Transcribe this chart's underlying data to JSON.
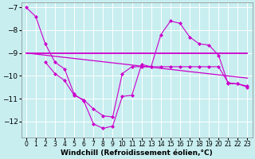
{
  "background_color": "#c8eef0",
  "grid_color": "#ffffff",
  "line_color": "#cc00cc",
  "xlabel": "Windchill (Refroidissement éolien,°C)",
  "xlabel_fontsize": 6.5,
  "ytick_fontsize": 6.5,
  "xtick_fontsize": 5.5,
  "ylim": [
    -12.7,
    -6.8
  ],
  "xlim": [
    -0.5,
    23.5
  ],
  "yticks": [
    -12,
    -11,
    -10,
    -9,
    -8,
    -7
  ],
  "xticks": [
    0,
    1,
    2,
    3,
    4,
    5,
    6,
    7,
    8,
    9,
    10,
    11,
    12,
    13,
    14,
    15,
    16,
    17,
    18,
    19,
    20,
    21,
    22,
    23
  ],
  "line1_x": [
    0,
    1,
    2,
    3,
    4,
    5,
    6,
    7,
    8,
    9,
    10,
    11,
    12,
    13,
    14,
    15,
    16,
    17,
    18,
    19,
    20,
    21,
    22,
    23
  ],
  "line1_y": [
    -7.0,
    -7.4,
    -8.6,
    -9.4,
    -9.7,
    -10.8,
    -11.1,
    -12.1,
    -12.3,
    -12.2,
    -10.9,
    -10.85,
    -9.5,
    -9.6,
    -8.2,
    -7.6,
    -7.7,
    -8.3,
    -8.6,
    -8.65,
    -9.1,
    -10.35,
    -10.35,
    -10.5
  ],
  "line2_x": [
    0,
    1,
    2,
    3,
    4,
    5,
    6,
    7,
    8,
    9,
    10,
    11,
    12,
    13,
    14,
    15,
    16,
    17,
    18,
    19,
    20,
    21,
    22,
    23
  ],
  "line2_y": [
    -9.0,
    -9.0,
    -9.0,
    -9.0,
    -9.0,
    -9.0,
    -9.0,
    -9.0,
    -9.0,
    -9.0,
    -9.0,
    -9.0,
    -9.0,
    -9.0,
    -9.0,
    -9.0,
    -9.0,
    -9.0,
    -9.0,
    -9.0,
    -9.0,
    -9.0,
    -9.0,
    -9.0
  ],
  "line3_x": [
    0,
    23
  ],
  "line3_y": [
    -9.0,
    -10.1
  ],
  "line4_x": [
    2,
    3,
    4,
    5,
    6,
    7,
    8,
    9,
    10,
    11,
    12,
    13,
    14,
    15,
    16,
    17,
    18,
    19,
    20,
    21,
    22,
    23
  ],
  "line4_y": [
    -9.4,
    -9.9,
    -10.2,
    -10.85,
    -11.05,
    -11.45,
    -11.75,
    -11.8,
    -9.9,
    -9.6,
    -9.6,
    -9.6,
    -9.6,
    -9.6,
    -9.6,
    -9.6,
    -9.6,
    -9.6,
    -9.6,
    -10.3,
    -10.35,
    -10.45
  ]
}
